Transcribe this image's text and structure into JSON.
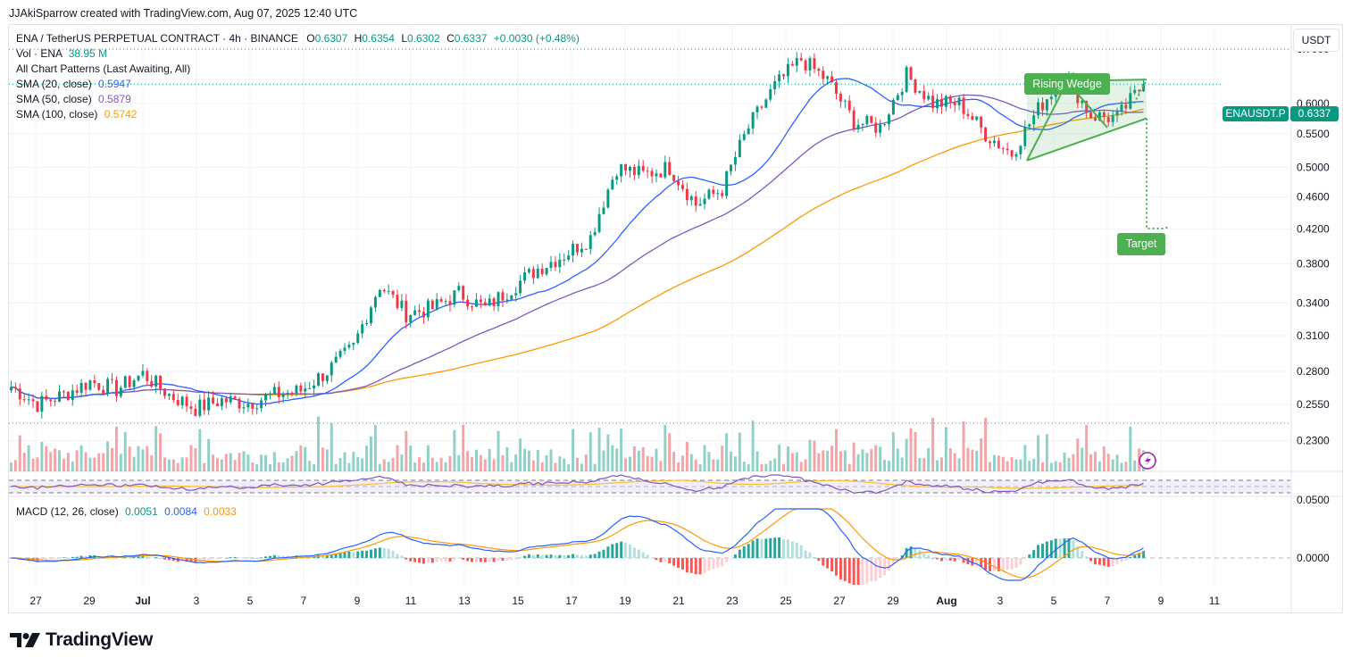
{
  "credit": "JJAkiSparrow created with TradingView.com, Aug 07, 2025 12:40 UTC",
  "header": {
    "symbol": "ENA / TetherUS PERPETUAL CONTRACT · 4h · BINANCE",
    "open_label": "O",
    "open": "0.6307",
    "high_label": "H",
    "high": "0.6354",
    "low_label": "L",
    "low": "0.6302",
    "close_label": "C",
    "close": "0.6337",
    "change": "+0.0030 (+0.48%)"
  },
  "indicators": {
    "volume": {
      "label": "Vol · ENA",
      "value": "38.95 M"
    },
    "patterns": {
      "label": "All Chart Patterns (Last Awaiting, All)"
    },
    "sma20": {
      "label": "SMA (20, close)",
      "value": "0.5947",
      "color": "#2962ff"
    },
    "sma50": {
      "label": "SMA (50, close)",
      "value": "0.5879",
      "color": "#7e57c2"
    },
    "sma100": {
      "label": "SMA (100, close)",
      "value": "0.5742",
      "color": "#ff9800"
    },
    "macd": {
      "label": "MACD (12, 26, close)",
      "hist": "0.0051",
      "macd": "0.0084",
      "signal": "0.0033",
      "hist_color": "#089981",
      "macd_color": "#2962ff",
      "signal_color": "#ff9800"
    }
  },
  "unit_button": "USDT",
  "price_tag": {
    "symbol": "ENAUSDT.P",
    "price": "0.6337",
    "color": "#089981"
  },
  "pattern_labels": {
    "wedge": "Rising Wedge",
    "target": "Target",
    "color": "#4caf50"
  },
  "logo": "TradingView",
  "colors": {
    "up": "#089981",
    "down": "#f23645",
    "vol_up": "#8fd0c7",
    "vol_down": "#f5a3a6"
  },
  "chart_data": {
    "type": "candlestick",
    "title": "ENA / TetherUS PERPETUAL CONTRACT · 4h · BINANCE",
    "price_axis_ticks": [
      "0.7000",
      "0.6000",
      "0.5500",
      "0.5000",
      "0.4600",
      "0.4200",
      "0.3800",
      "0.3400",
      "0.3100",
      "0.2800",
      "0.2550",
      "0.2300"
    ],
    "price_axis_scale": "log",
    "ylim": [
      0.215,
      0.72
    ],
    "macd_axis_ticks": [
      "0.0500",
      "0.0000"
    ],
    "x_ticks": [
      {
        "label": "27",
        "bold": false
      },
      {
        "label": "29",
        "bold": false
      },
      {
        "label": "Jul",
        "bold": true
      },
      {
        "label": "3",
        "bold": false
      },
      {
        "label": "5",
        "bold": false
      },
      {
        "label": "7",
        "bold": false
      },
      {
        "label": "9",
        "bold": false
      },
      {
        "label": "11",
        "bold": false
      },
      {
        "label": "13",
        "bold": false
      },
      {
        "label": "15",
        "bold": false
      },
      {
        "label": "17",
        "bold": false
      },
      {
        "label": "19",
        "bold": false
      },
      {
        "label": "21",
        "bold": false
      },
      {
        "label": "23",
        "bold": false
      },
      {
        "label": "25",
        "bold": false
      },
      {
        "label": "27",
        "bold": false
      },
      {
        "label": "29",
        "bold": false
      },
      {
        "label": "Aug",
        "bold": true
      },
      {
        "label": "3",
        "bold": false
      },
      {
        "label": "5",
        "bold": false
      },
      {
        "label": "7",
        "bold": false
      },
      {
        "label": "9",
        "bold": false
      },
      {
        "label": "11",
        "bold": false
      }
    ],
    "close_path_days": [
      0,
      1,
      2,
      3,
      4,
      5,
      6,
      7,
      8,
      9,
      10,
      11,
      12,
      13,
      14,
      15,
      16,
      17,
      18,
      19,
      20,
      21,
      22,
      23,
      24,
      25,
      26,
      27,
      28,
      29,
      30,
      31,
      32,
      33,
      34,
      35,
      36,
      37,
      38,
      39,
      40,
      41,
      42,
      43
    ],
    "close_path_values": [
      0.268,
      0.255,
      0.262,
      0.272,
      0.266,
      0.278,
      0.262,
      0.252,
      0.258,
      0.256,
      0.262,
      0.265,
      0.28,
      0.3,
      0.358,
      0.33,
      0.335,
      0.35,
      0.335,
      0.355,
      0.375,
      0.39,
      0.41,
      0.5,
      0.49,
      0.5,
      0.45,
      0.47,
      0.56,
      0.63,
      0.68,
      0.64,
      0.57,
      0.56,
      0.65,
      0.6,
      0.6,
      0.55,
      0.52,
      0.59,
      0.65,
      0.58,
      0.575,
      0.6337
    ],
    "last_close": 0.6337,
    "sma_last": {
      "sma20": 0.5947,
      "sma50": 0.5879,
      "sma100": 0.5742
    },
    "macd_last": {
      "hist": 0.0051,
      "macd": 0.0084,
      "signal": 0.0033
    },
    "volume_last": "38.95 M",
    "pattern": {
      "name": "Rising Wedge",
      "target_label": "Target",
      "upper_line": [
        0.638,
        0.642
      ],
      "lower_line": [
        0.51,
        0.575
      ],
      "target_price": 0.45
    }
  }
}
